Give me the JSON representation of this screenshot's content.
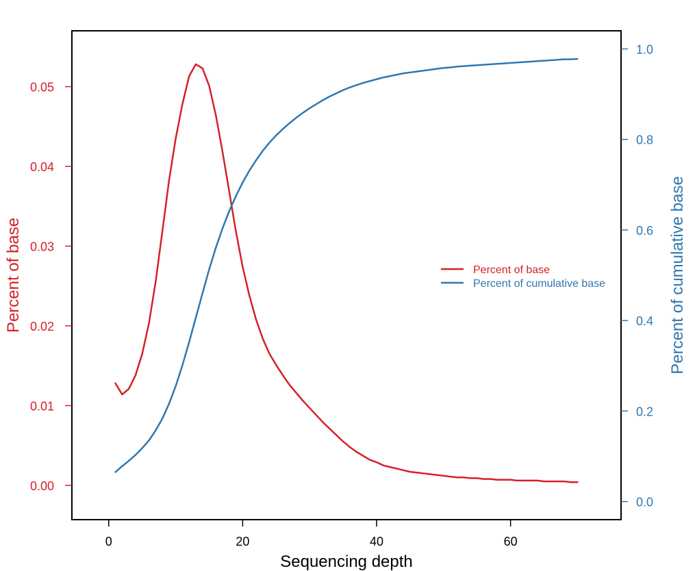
{
  "chart_data": {
    "type": "line",
    "xlabel": "Sequencing depth",
    "ylabel_left": "Percent of base",
    "ylabel_right": "Percent of cumulative base",
    "xlim": [
      -5.5,
      76.5
    ],
    "ylim_left": [
      -0.0043,
      0.057
    ],
    "ylim_right": [
      -0.04,
      1.04
    ],
    "xticks": [
      0,
      20,
      40,
      60
    ],
    "yticks_left": [
      0.0,
      0.01,
      0.02,
      0.03,
      0.04,
      0.05
    ],
    "yticks_left_labels": [
      "0.00",
      "0.01",
      "0.02",
      "0.03",
      "0.04",
      "0.05"
    ],
    "yticks_right": [
      0.0,
      0.2,
      0.4,
      0.6,
      0.8,
      1.0
    ],
    "yticks_right_labels": [
      "0.0",
      "0.2",
      "0.4",
      "0.6",
      "0.8",
      "1.0"
    ],
    "grid": false,
    "legend_position": "center-right",
    "colors": {
      "left": "#d42027",
      "right": "#2f77b0",
      "axis": "#000000"
    },
    "series": [
      {
        "name": "Percent of base",
        "axis": "left",
        "x": [
          1,
          2,
          3,
          4,
          5,
          6,
          7,
          8,
          9,
          10,
          11,
          12,
          13,
          14,
          15,
          16,
          17,
          18,
          19,
          20,
          21,
          22,
          23,
          24,
          25,
          26,
          27,
          28,
          29,
          30,
          31,
          32,
          33,
          34,
          35,
          36,
          37,
          38,
          39,
          40,
          41,
          42,
          43,
          44,
          45,
          46,
          47,
          48,
          49,
          50,
          51,
          52,
          53,
          54,
          55,
          56,
          57,
          58,
          59,
          60,
          61,
          62,
          63,
          64,
          65,
          66,
          67,
          68,
          69,
          70
        ],
        "y": [
          0.0128,
          0.0114,
          0.0121,
          0.0138,
          0.0165,
          0.0203,
          0.0255,
          0.0318,
          0.0382,
          0.0435,
          0.0478,
          0.0513,
          0.0528,
          0.0523,
          0.0501,
          0.0464,
          0.0418,
          0.0368,
          0.0318,
          0.0274,
          0.0238,
          0.0208,
          0.0184,
          0.0165,
          0.0151,
          0.0138,
          0.0126,
          0.0116,
          0.0106,
          0.0097,
          0.0088,
          0.0079,
          0.0071,
          0.0063,
          0.0055,
          0.0048,
          0.0042,
          0.0037,
          0.0032,
          0.0029,
          0.0025,
          0.0023,
          0.0021,
          0.0019,
          0.0017,
          0.0016,
          0.0015,
          0.0014,
          0.0013,
          0.0012,
          0.0011,
          0.001,
          0.001,
          0.0009,
          0.0009,
          0.0008,
          0.0008,
          0.0007,
          0.0007,
          0.0007,
          0.0006,
          0.0006,
          0.0006,
          0.0006,
          0.0005,
          0.0005,
          0.0005,
          0.0005,
          0.0004,
          0.0004
        ]
      },
      {
        "name": "Percent of cumulative base",
        "axis": "right",
        "x": [
          1,
          2,
          3,
          4,
          5,
          6,
          7,
          8,
          9,
          10,
          11,
          12,
          13,
          14,
          15,
          16,
          17,
          18,
          19,
          20,
          21,
          22,
          23,
          24,
          25,
          26,
          27,
          28,
          29,
          30,
          31,
          32,
          33,
          34,
          35,
          36,
          37,
          38,
          39,
          40,
          41,
          42,
          43,
          44,
          45,
          46,
          47,
          48,
          49,
          50,
          51,
          52,
          53,
          54,
          55,
          56,
          57,
          58,
          59,
          60,
          61,
          62,
          63,
          64,
          65,
          66,
          67,
          68,
          69,
          70
        ],
        "y": [
          0.065,
          0.078,
          0.09,
          0.103,
          0.118,
          0.135,
          0.157,
          0.183,
          0.216,
          0.255,
          0.301,
          0.352,
          0.406,
          0.46,
          0.513,
          0.561,
          0.604,
          0.642,
          0.675,
          0.705,
          0.731,
          0.754,
          0.775,
          0.793,
          0.809,
          0.823,
          0.836,
          0.848,
          0.859,
          0.869,
          0.878,
          0.887,
          0.895,
          0.902,
          0.909,
          0.915,
          0.92,
          0.925,
          0.929,
          0.933,
          0.937,
          0.94,
          0.943,
          0.946,
          0.948,
          0.95,
          0.952,
          0.954,
          0.956,
          0.958,
          0.959,
          0.961,
          0.962,
          0.963,
          0.964,
          0.965,
          0.966,
          0.967,
          0.968,
          0.969,
          0.97,
          0.971,
          0.972,
          0.973,
          0.974,
          0.975,
          0.976,
          0.977,
          0.977,
          0.978
        ]
      }
    ]
  }
}
